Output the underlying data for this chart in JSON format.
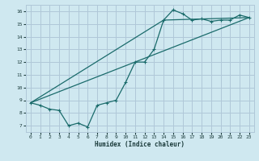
{
  "title": "",
  "xlabel": "Humidex (Indice chaleur)",
  "ylabel": "",
  "background_color": "#cfe8f0",
  "grid_color": "#b0c8d8",
  "line_color": "#1a6b6b",
  "xlim": [
    -0.5,
    23.5
  ],
  "ylim": [
    6.5,
    16.5
  ],
  "xticks": [
    0,
    1,
    2,
    3,
    4,
    5,
    6,
    7,
    8,
    9,
    10,
    11,
    12,
    13,
    14,
    15,
    16,
    17,
    18,
    19,
    20,
    21,
    22,
    23
  ],
  "yticks": [
    7,
    8,
    9,
    10,
    11,
    12,
    13,
    14,
    15,
    16
  ],
  "line1_x": [
    0,
    1,
    2,
    3,
    4,
    5,
    6,
    7,
    8,
    9,
    10,
    11,
    12,
    13,
    14,
    15,
    16,
    17,
    18,
    19,
    20,
    21,
    22,
    23
  ],
  "line1_y": [
    8.8,
    8.6,
    8.3,
    8.2,
    7.0,
    7.2,
    6.9,
    8.6,
    8.8,
    9.0,
    10.4,
    12.0,
    12.0,
    13.0,
    15.3,
    16.1,
    15.8,
    15.3,
    15.4,
    15.2,
    15.3,
    15.3,
    15.7,
    15.5
  ],
  "line2_x": [
    0,
    23
  ],
  "line2_y": [
    8.8,
    15.5
  ],
  "line3_x": [
    0,
    14,
    23
  ],
  "line3_y": [
    8.8,
    15.3,
    15.5
  ]
}
